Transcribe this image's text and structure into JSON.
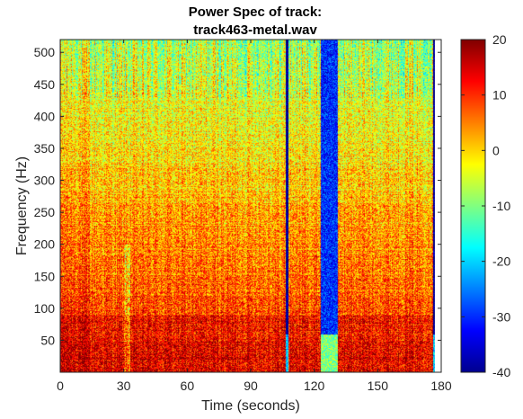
{
  "chart_data": {
    "type": "heatmap",
    "title": [
      "Power Spec of track:",
      "track463-metal.wav"
    ],
    "xlabel": "Time (seconds)",
    "ylabel": "Frequency (Hz)",
    "xlim": [
      0,
      180
    ],
    "ylim": [
      0,
      520
    ],
    "x_ticks": [
      0,
      30,
      60,
      90,
      120,
      150,
      180
    ],
    "y_ticks": [
      50,
      100,
      150,
      200,
      250,
      300,
      350,
      400,
      450,
      500
    ],
    "colormap": "jet",
    "clim": [
      -40,
      20
    ],
    "colorbar_ticks": [
      -40,
      -30,
      -20,
      -10,
      0,
      10,
      20
    ],
    "data_extent": {
      "time_end": 177,
      "freq_max": 520
    },
    "dropout_regions": [
      {
        "center": 107,
        "width": 1.5,
        "note_value": -40
      },
      {
        "center": 127,
        "width": 8,
        "note_value": -30
      },
      {
        "center": 176.5,
        "width": 1.5,
        "note_value": -40
      }
    ],
    "colors": {
      "frame": "#262626",
      "background": "#ffffff",
      "fill_low": "#00008f",
      "fill_high": "#800000"
    }
  }
}
